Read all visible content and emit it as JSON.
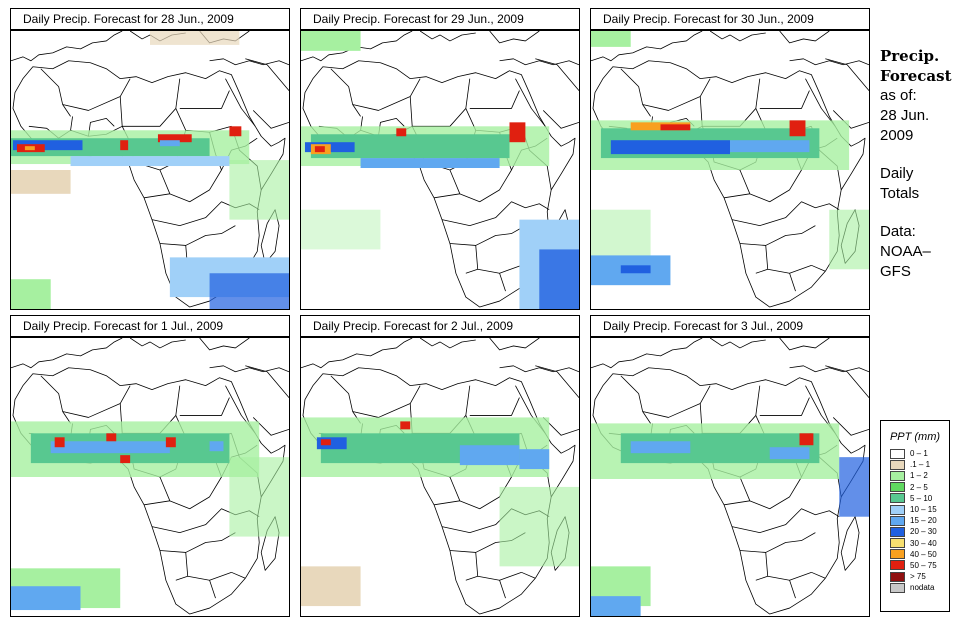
{
  "panels": [
    {
      "title": "Daily Precip. Forecast for  28 Jun., 2009"
    },
    {
      "title": "Daily Precip. Forecast for  29 Jun., 2009"
    },
    {
      "title": "Daily Precip. Forecast for  30 Jun., 2009"
    },
    {
      "title": "Daily Precip. Forecast for  1 Jul., 2009"
    },
    {
      "title": "Daily Precip. Forecast for  2 Jul., 2009"
    },
    {
      "title": "Daily Precip. Forecast for  3 Jul., 2009"
    }
  ],
  "sidebar": {
    "head1": "Precip.",
    "head2": "Forecast",
    "asof": "as of:",
    "date1": "28 Jun.",
    "date2": "2009",
    "daily": "Daily",
    "totals": "Totals",
    "data": "Data:",
    "source1": "NOAA–",
    "source2": "GFS"
  },
  "legend": {
    "title": "PPT (mm)",
    "items": [
      {
        "label": "0 – 1",
        "color": "#ffffff"
      },
      {
        "label": ".1 – 1",
        "color": "#e8d8bc"
      },
      {
        "label": "1 – 2",
        "color": "#a6f0a0"
      },
      {
        "label": "2 – 5",
        "color": "#60d860"
      },
      {
        "label": "5 – 10",
        "color": "#58c890"
      },
      {
        "label": "10 – 15",
        "color": "#a0d0f8"
      },
      {
        "label": "15 – 20",
        "color": "#60a8f0"
      },
      {
        "label": "20 – 30",
        "color": "#2060e0"
      },
      {
        "label": "30 – 40",
        "color": "#f8e070"
      },
      {
        "label": "40 – 50",
        "color": "#f8a020"
      },
      {
        "label": "50 – 75",
        "color": "#e02010"
      },
      {
        "label": "> 75",
        "color": "#901010"
      },
      {
        "label": "nodata",
        "color": "#c8c8c8"
      }
    ]
  }
}
